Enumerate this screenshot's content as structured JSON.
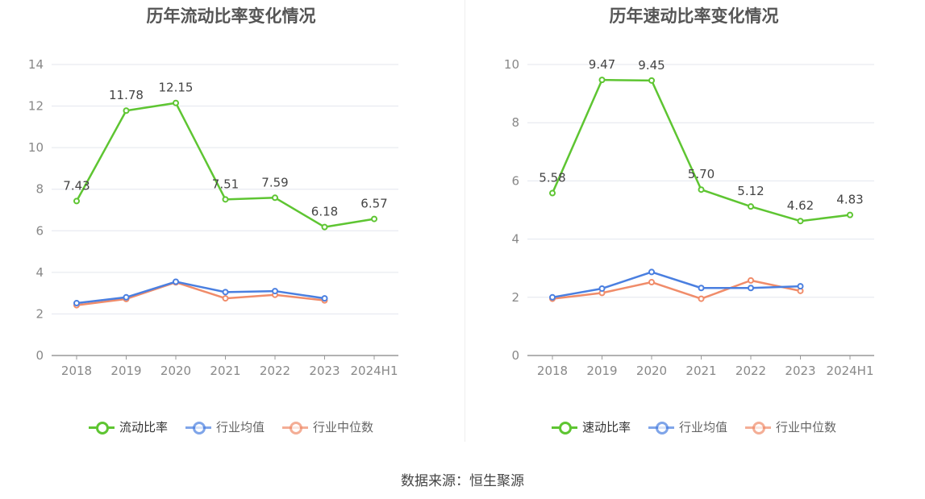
{
  "source": "数据来源：恒生聚源",
  "colors": {
    "primary": "#5ec532",
    "industry_avg": "#4a7fe0",
    "industry_median": "#f08c6a",
    "grid": "#e3e6ee",
    "axis": "#888888"
  },
  "chart_data": [
    {
      "type": "line",
      "title": "历年流动比率变化情况",
      "categories": [
        "2018",
        "2019",
        "2020",
        "2021",
        "2022",
        "2023",
        "2024H1"
      ],
      "ylim": [
        0,
        14
      ],
      "yticks": [
        0,
        2,
        4,
        6,
        8,
        10,
        12,
        14
      ],
      "grid": true,
      "legend_position": "bottom",
      "series": [
        {
          "name": "流动比率",
          "color": "#5ec532",
          "values": [
            7.43,
            11.78,
            12.15,
            7.51,
            7.59,
            6.18,
            6.57
          ],
          "labels": [
            "7.43",
            "11.78",
            "12.15",
            "7.51",
            "7.59",
            "6.18",
            "6.57"
          ],
          "show_labels": true
        },
        {
          "name": "行业均值",
          "color": "#4a7fe0",
          "values": [
            2.52,
            2.8,
            3.55,
            3.05,
            3.1,
            2.75,
            null
          ],
          "show_labels": false
        },
        {
          "name": "行业中位数",
          "color": "#f08c6a",
          "values": [
            2.42,
            2.72,
            3.52,
            2.75,
            2.92,
            2.65,
            null
          ],
          "show_labels": false
        }
      ]
    },
    {
      "type": "line",
      "title": "历年速动比率变化情况",
      "categories": [
        "2018",
        "2019",
        "2020",
        "2021",
        "2022",
        "2023",
        "2024H1"
      ],
      "ylim": [
        0,
        10
      ],
      "yticks": [
        0,
        2,
        4,
        6,
        8,
        10
      ],
      "grid": true,
      "legend_position": "bottom",
      "series": [
        {
          "name": "速动比率",
          "color": "#5ec532",
          "values": [
            5.58,
            9.47,
            9.45,
            5.7,
            5.12,
            4.62,
            4.83
          ],
          "labels": [
            "5.58",
            "9.47",
            "9.45",
            "5.70",
            "5.12",
            "4.62",
            "4.83"
          ],
          "show_labels": true
        },
        {
          "name": "行业均值",
          "color": "#4a7fe0",
          "values": [
            2.0,
            2.3,
            2.87,
            2.32,
            2.32,
            2.38,
            null
          ],
          "show_labels": false
        },
        {
          "name": "行业中位数",
          "color": "#f08c6a",
          "values": [
            1.95,
            2.15,
            2.52,
            1.95,
            2.58,
            2.22,
            null
          ],
          "show_labels": false
        }
      ]
    }
  ]
}
